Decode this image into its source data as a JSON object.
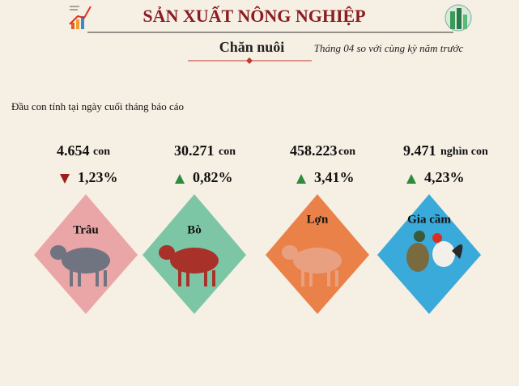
{
  "header": {
    "title": "SẢN XUẤT NÔNG NGHIỆP",
    "section": "Chăn nuôi",
    "subtitle": "Tháng 04 so với cùng kỳ năm trước"
  },
  "note": "Đầu con tính tại ngày cuối tháng báo cáo",
  "items": [
    {
      "label": "Trâu",
      "value": "4.654",
      "unit": "con",
      "change": "1,23%"
    },
    {
      "label": "Bò",
      "value": "30.271",
      "unit": "con",
      "change": "0,82%"
    },
    {
      "label": "Lợn",
      "value": "458.223",
      "unit": "con",
      "change": "3,41%"
    },
    {
      "label": "Gia cầm",
      "value": "9.471",
      "unit": "nghìn con",
      "change": "4,23%"
    }
  ]
}
